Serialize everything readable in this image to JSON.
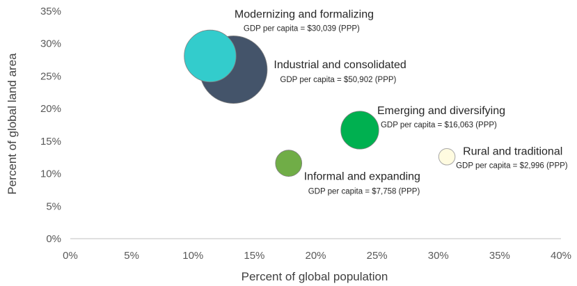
{
  "chart_data": {
    "type": "scatter",
    "subtype": "bubble",
    "title": "",
    "xlabel": "Percent of global population",
    "ylabel": "Percent of global land area",
    "xlim": [
      0,
      40
    ],
    "ylim": [
      0,
      35
    ],
    "xticks": [
      0,
      5,
      10,
      15,
      20,
      25,
      30,
      35,
      40
    ],
    "yticks": [
      0,
      5,
      10,
      15,
      20,
      25,
      30,
      35
    ],
    "x_tick_labels": [
      "0%",
      "5%",
      "10%",
      "15%",
      "20%",
      "25%",
      "30%",
      "35%",
      "40%"
    ],
    "y_tick_labels": [
      "0%",
      "5%",
      "10%",
      "15%",
      "20%",
      "25%",
      "30%",
      "35%"
    ],
    "grid": false,
    "legend": "none",
    "series": [
      {
        "name": "Industrial and consolidated",
        "gdp_label": "GDP per capita = $50,902 (PPP)",
        "gdp_per_capita": 50902,
        "x": 13.3,
        "y": 26.0,
        "color": "#44546a",
        "label_anchor": "right"
      },
      {
        "name": "Modernizing and formalizing",
        "gdp_label": "GDP per capita = $30,039 (PPP)",
        "gdp_per_capita": 30039,
        "x": 11.4,
        "y": 28.1,
        "color": "#33cccc",
        "label_anchor": "above"
      },
      {
        "name": "Emerging and diversifying",
        "gdp_label": "GDP per capita = $16,063 (PPP)",
        "gdp_per_capita": 16063,
        "x": 23.6,
        "y": 16.7,
        "color": "#00b050",
        "label_anchor": "upper-right"
      },
      {
        "name": "Informal and expanding",
        "gdp_label": "GDP per capita = $7,758 (PPP)",
        "gdp_per_capita": 7758,
        "x": 17.8,
        "y": 11.6,
        "color": "#70ad47",
        "label_anchor": "lower-right"
      },
      {
        "name": "Rural and traditional",
        "gdp_label": "GDP per capita = $2,996 (PPP)",
        "gdp_per_capita": 2996,
        "x": 30.7,
        "y": 12.6,
        "color": "#fffbe0",
        "label_anchor": "right"
      }
    ]
  }
}
